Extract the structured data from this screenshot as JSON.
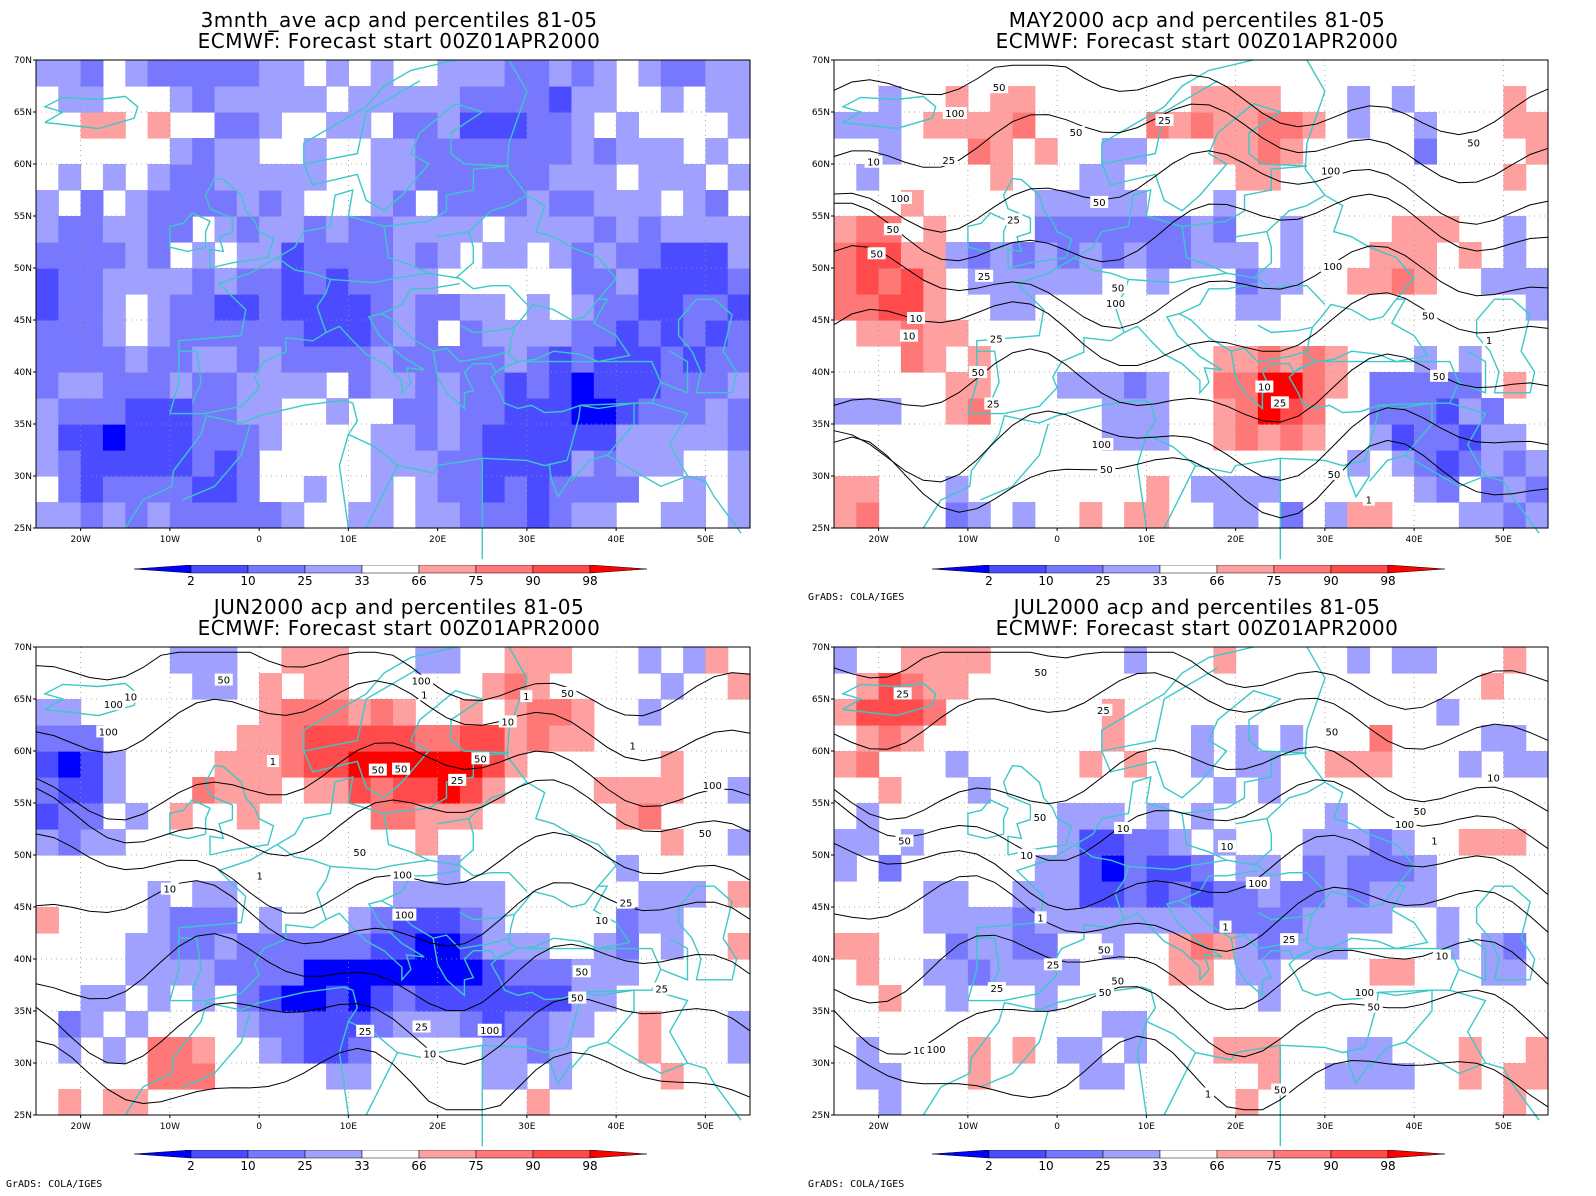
{
  "panels": [
    {
      "title_line1": "3mnth_ave acp and percentiles 81-05",
      "title_line2": "ECMWF: Forecast start 00Z01APR2000",
      "credit": "",
      "contour_labels": []
    },
    {
      "title_line1": "MAY2000 acp and percentiles 81-05",
      "title_line2": "ECMWF: Forecast start 00Z01APR2000",
      "credit": "GrADS: COLA/IGES",
      "contour_labels": [
        "50",
        "50",
        "50",
        "50",
        "100",
        "50",
        "50",
        "100",
        "100",
        "50",
        "25",
        "50",
        "25",
        "25",
        "100",
        "10",
        "50",
        "100",
        "25",
        "50",
        "50",
        "25",
        "25",
        "100",
        "10",
        "50",
        "25",
        "10",
        "10",
        "1",
        "1"
      ]
    },
    {
      "title_line1": "JUN2000 acp and percentiles 81-05",
      "title_line2": "ECMWF: Forecast start 00Z01APR2000",
      "credit": "GrADS: COLA/IGES",
      "contour_labels": [
        "50",
        "50",
        "100",
        "50",
        "50",
        "50",
        "100",
        "100",
        "100",
        "50",
        "100",
        "100",
        "50",
        "25",
        "10",
        "50",
        "25",
        "10",
        "25",
        "25",
        "100",
        "50",
        "10",
        "1",
        "10",
        "25",
        "1",
        "10",
        "1",
        "1",
        "1"
      ]
    },
    {
      "title_line1": "JUL2000 acp and percentiles 81-05",
      "title_line2": "ECMWF: Forecast start 00Z01APR2000",
      "credit": "GrADS: COLA/IGES",
      "contour_labels": [
        "50",
        "100",
        "50",
        "50",
        "50",
        "100",
        "50",
        "25",
        "100",
        "50",
        "100",
        "50",
        "50",
        "50",
        "25",
        "10",
        "50",
        "10",
        "25",
        "10",
        "100",
        "25",
        "1",
        "1",
        "10",
        "1",
        "1",
        "25",
        "10"
      ]
    }
  ],
  "axes": {
    "lat_labels": [
      "70N",
      "65N",
      "60N",
      "55N",
      "50N",
      "45N",
      "40N",
      "35N",
      "30N",
      "25N"
    ],
    "lon_labels": [
      "20W",
      "10W",
      "0",
      "10E",
      "20E",
      "30E",
      "40E",
      "50E"
    ]
  },
  "legend": {
    "levels": [
      "2",
      "10",
      "25",
      "33",
      "66",
      "75",
      "90",
      "98"
    ],
    "colors": {
      "dark_blue": "#0000ff",
      "mid_blue": "#4b4bff",
      "blue": "#7878ff",
      "light_blue": "#a0a0ff",
      "light_red": "#ffa0a0",
      "red_1": "#ff7878",
      "red_2": "#ff4b4b",
      "dark_red": "#ff0000"
    }
  },
  "colors": {
    "coastline": "#3cc8c8",
    "contour": "#000000",
    "grid": "#999999"
  }
}
